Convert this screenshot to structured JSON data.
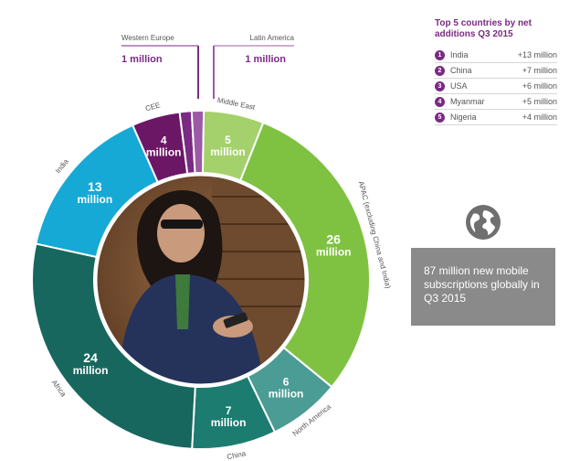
{
  "chart_data": {
    "type": "pie",
    "variant": "donut",
    "total_text": "87 million new mobile subscriptions globally in Q3 2015",
    "unit": "million",
    "slices": [
      {
        "name": "Western Europe",
        "value": 1,
        "value_text": "1",
        "color": "#7a2a82",
        "label_style": "callout"
      },
      {
        "name": "Latin America",
        "value": 1,
        "value_text": "1",
        "color": "#9c5aa6",
        "label_style": "callout"
      },
      {
        "name": "Middle East",
        "value": 5,
        "value_text": "5",
        "color": "#a4d16b"
      },
      {
        "name": "APAC (excluding China and India)",
        "value": 26,
        "value_text": "26",
        "color": "#7fc241"
      },
      {
        "name": "North America",
        "value": 6,
        "value_text": "6",
        "color": "#4a9c94"
      },
      {
        "name": "China",
        "value": 7,
        "value_text": "7",
        "color": "#1c7c70"
      },
      {
        "name": "Africa",
        "value": 24,
        "value_text": "24",
        "color": "#17675e"
      },
      {
        "name": "India",
        "value": 13,
        "value_text": "13",
        "color": "#16a9d6"
      },
      {
        "name": "CEE",
        "value": 4,
        "value_text": "4",
        "color": "#6b1766"
      }
    ]
  },
  "callouts": {
    "left": {
      "name": "Western Europe",
      "value": "1 million"
    },
    "right": {
      "name": "Latin America",
      "value": "1 million"
    }
  },
  "top5": {
    "title": "Top 5 countries by net additions Q3 2015",
    "rows": [
      {
        "num": "1",
        "country": "India",
        "value": "+13 million"
      },
      {
        "num": "2",
        "country": "China",
        "value": "+7 million"
      },
      {
        "num": "3",
        "country": "USA",
        "value": "+6 million"
      },
      {
        "num": "4",
        "country": "Myanmar",
        "value": "+5 million"
      },
      {
        "num": "5",
        "country": "Nigeria",
        "value": "+4 million"
      }
    ]
  },
  "info_box": {
    "text": "87 million new mobile subscriptions globally in Q3 2015",
    "icon": "globe-icon"
  },
  "colors": {
    "accent": "#7a2a82",
    "box": "#8a8a8a"
  }
}
